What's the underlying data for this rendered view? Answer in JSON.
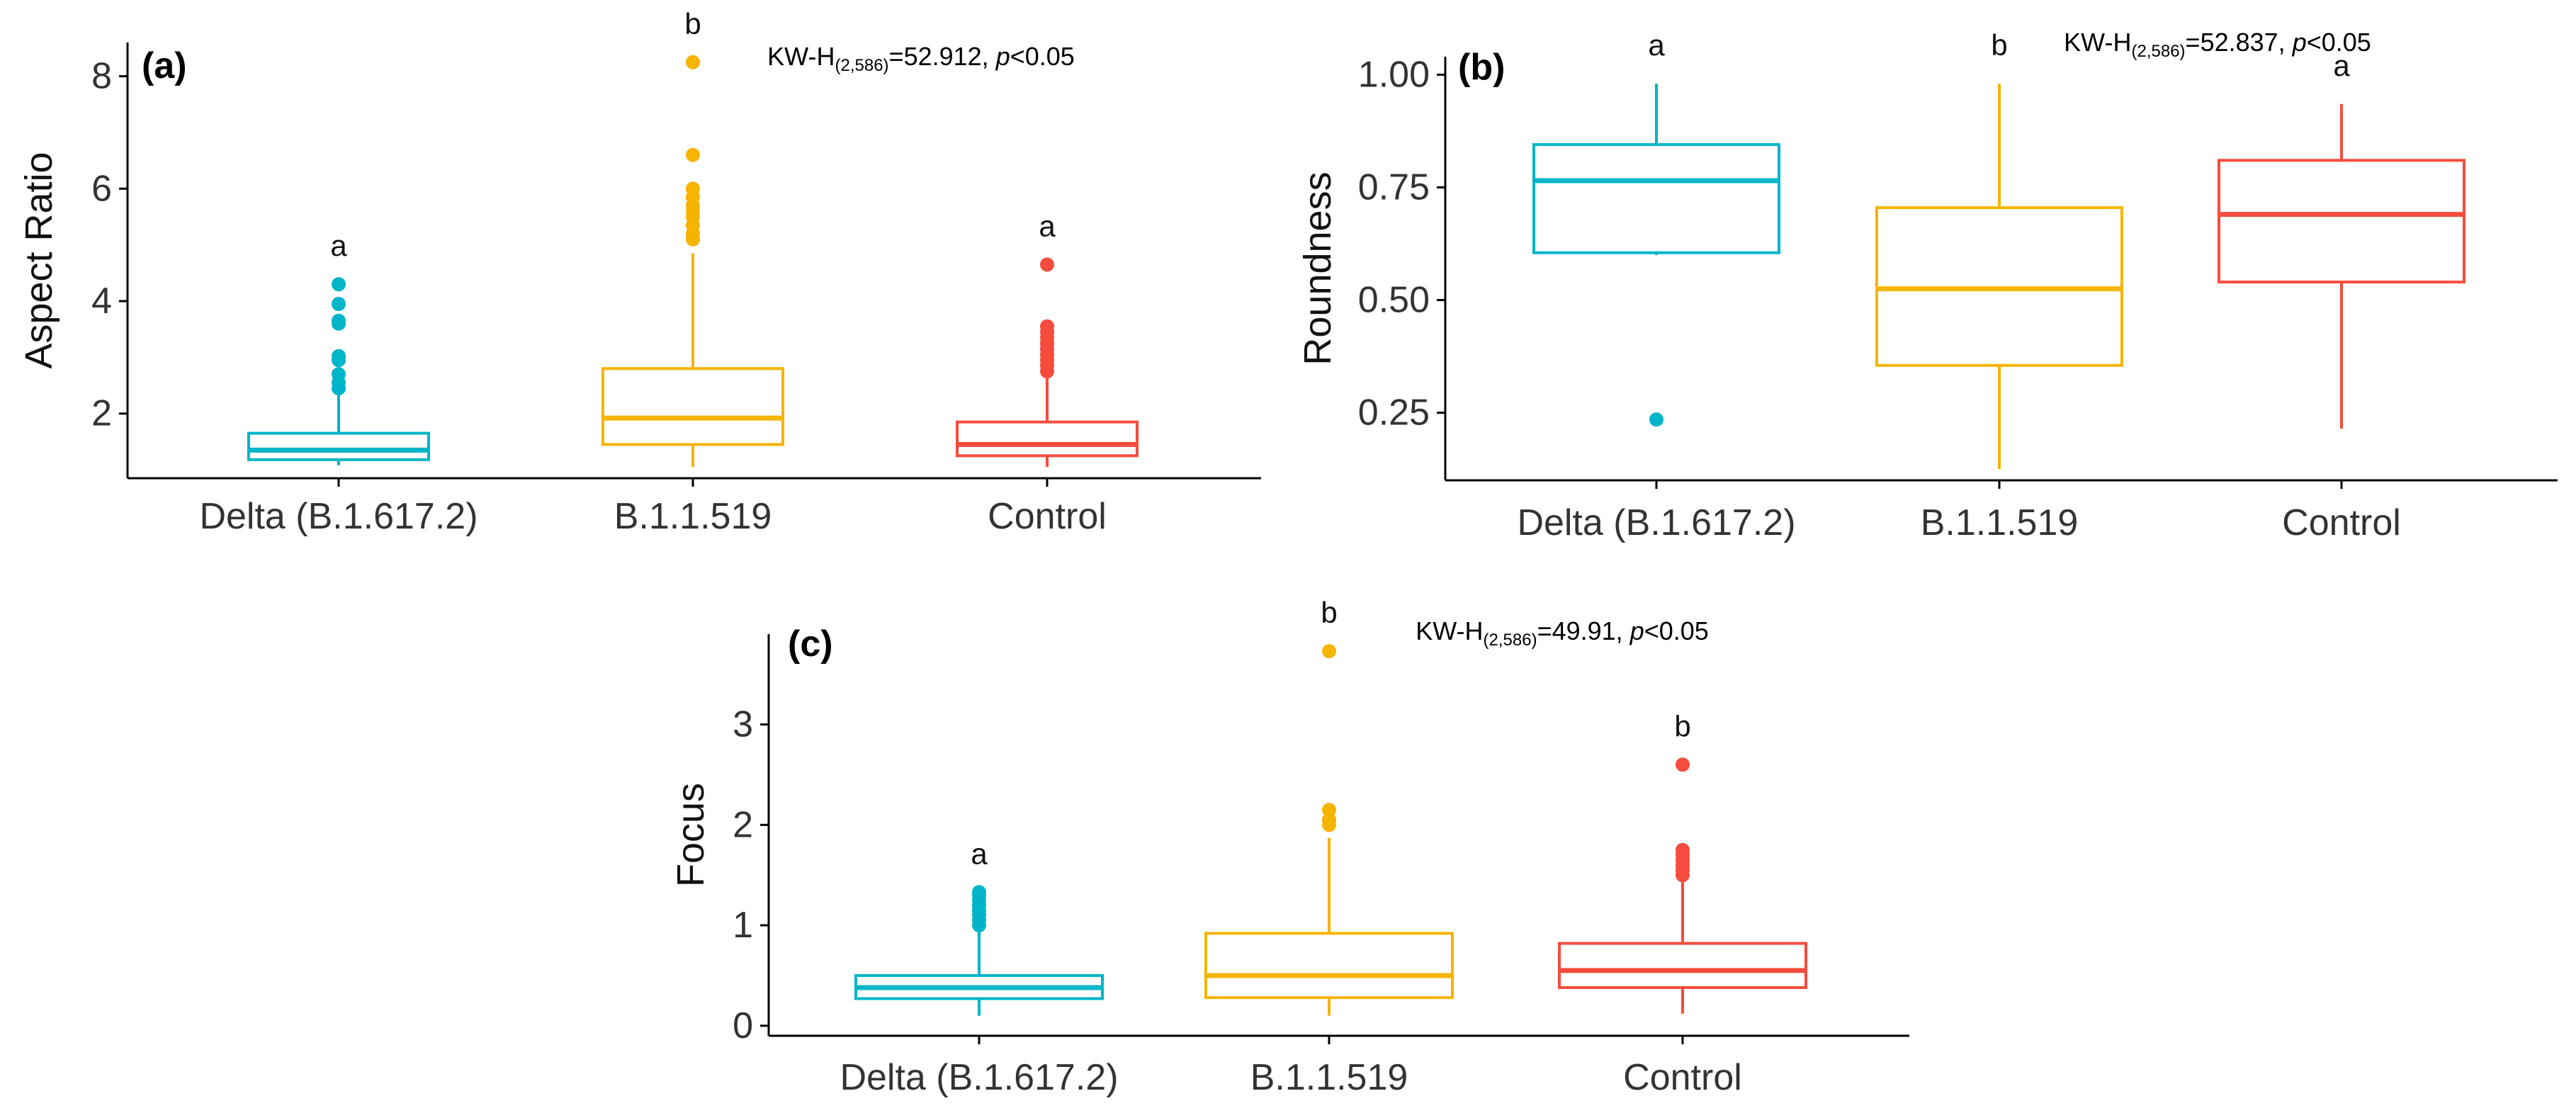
{
  "colors": {
    "delta": "#00B5C9",
    "b11519": "#F5B400",
    "control": "#F54C3D",
    "axis": "#000000"
  },
  "chart_data": [
    {
      "type": "box",
      "panel": "(a)",
      "ylabel": "Aspect Ratio",
      "xlabel": "",
      "categories": [
        "Delta (B.1.617.2)",
        "B.1.1.519",
        "Control"
      ],
      "ylim": [
        0.85,
        8.6
      ],
      "yticks": [
        2,
        4,
        6,
        8
      ],
      "annotation": {
        "pre": "KW-H",
        "sub": "(2,586)",
        "stat": "=52.912, ",
        "p": "p",
        "post": "<0.05"
      },
      "groups": [
        {
          "name": "Delta (B.1.617.2)",
          "color_key": "delta",
          "min": 1.08,
          "q1": 1.18,
          "median": 1.35,
          "q3": 1.65,
          "max": 2.35,
          "letter": "a",
          "outliers": [
            2.45,
            2.55,
            2.7,
            2.95,
            3.02,
            3.6,
            3.65,
            3.95,
            4.3
          ]
        },
        {
          "name": "B.1.1.519",
          "color_key": "b11519",
          "min": 1.05,
          "q1": 1.45,
          "median": 1.92,
          "q3": 2.8,
          "max": 4.85,
          "letter": "b",
          "outliers": [
            5.1,
            5.2,
            5.35,
            5.5,
            5.6,
            5.7,
            5.85,
            6.0,
            6.6,
            8.25
          ]
        },
        {
          "name": "Control",
          "color_key": "control",
          "min": 1.05,
          "q1": 1.25,
          "median": 1.45,
          "q3": 1.85,
          "max": 2.65,
          "letter": "a",
          "outliers": [
            2.75,
            2.85,
            2.95,
            3.05,
            3.15,
            3.25,
            3.35,
            3.45,
            3.55,
            4.65
          ]
        }
      ]
    },
    {
      "type": "box",
      "panel": "(b)",
      "ylabel": "Roundness",
      "xlabel": "",
      "categories": [
        "Delta (B.1.617.2)",
        "B.1.1.519",
        "Control"
      ],
      "ylim": [
        0.1,
        1.04
      ],
      "yticks": [
        0.25,
        0.5,
        0.75,
        1.0
      ],
      "ytick_labels": [
        "0.25",
        "0.50",
        "0.75",
        "1.00"
      ],
      "annotation": {
        "pre": "KW-H",
        "sub": "(2,586)",
        "stat": "=52.837, ",
        "p": "p",
        "post": "<0.05"
      },
      "groups": [
        {
          "name": "Delta (B.1.617.2)",
          "color_key": "delta",
          "min": 0.6,
          "q1": 0.605,
          "median": 0.765,
          "q3": 0.845,
          "max": 0.98,
          "letter": "a",
          "outliers": [
            0.235
          ]
        },
        {
          "name": "B.1.1.519",
          "color_key": "b11519",
          "min": 0.125,
          "q1": 0.355,
          "median": 0.525,
          "q3": 0.705,
          "max": 0.98,
          "letter": "b",
          "outliers": []
        },
        {
          "name": "Control",
          "color_key": "control",
          "min": 0.215,
          "q1": 0.54,
          "median": 0.69,
          "q3": 0.81,
          "max": 0.935,
          "letter": "a",
          "outliers": []
        }
      ]
    },
    {
      "type": "box",
      "panel": "(c)",
      "ylabel": "Focus",
      "xlabel": "",
      "categories": [
        "Delta (B.1.617.2)",
        "B.1.1.519",
        "Control"
      ],
      "ylim": [
        -0.1,
        3.9
      ],
      "yticks": [
        0,
        1,
        2,
        3
      ],
      "annotation": {
        "pre": "KW-H",
        "sub": "(2,586)",
        "stat": "=49.91, ",
        "p": "p",
        "post": "<0.05"
      },
      "groups": [
        {
          "name": "Delta (B.1.617.2)",
          "color_key": "delta",
          "min": 0.1,
          "q1": 0.27,
          "median": 0.38,
          "q3": 0.5,
          "max": 0.95,
          "letter": "a",
          "outliers": [
            1.0,
            1.05,
            1.1,
            1.15,
            1.2,
            1.25,
            1.3,
            1.33
          ]
        },
        {
          "name": "B.1.1.519",
          "color_key": "b11519",
          "min": 0.1,
          "q1": 0.28,
          "median": 0.5,
          "q3": 0.92,
          "max": 1.87,
          "letter": "b",
          "outliers": [
            2.0,
            2.05,
            2.15,
            3.73
          ]
        },
        {
          "name": "Control",
          "color_key": "control",
          "min": 0.12,
          "q1": 0.38,
          "median": 0.55,
          "q3": 0.82,
          "max": 1.45,
          "letter": "b",
          "outliers": [
            1.5,
            1.55,
            1.6,
            1.65,
            1.7,
            1.75,
            2.6
          ]
        }
      ]
    }
  ]
}
